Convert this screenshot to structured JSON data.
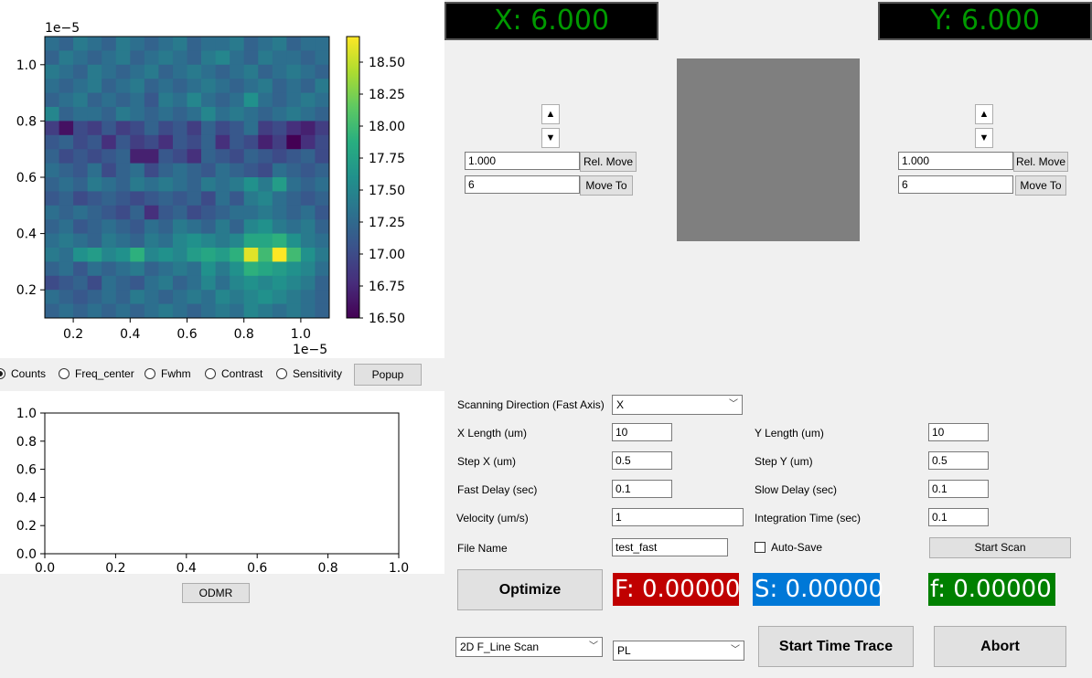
{
  "heatmap": {
    "exponent_top": "1e−5",
    "exponent_bottom": "1e−5",
    "x_ticks": [
      "0.2",
      "0.4",
      "0.6",
      "0.8",
      "1.0"
    ],
    "y_ticks": [
      "0.2",
      "0.4",
      "0.6",
      "0.8",
      "1.0"
    ],
    "colorbar_ticks": [
      "16.50",
      "16.75",
      "17.00",
      "17.25",
      "17.50",
      "17.75",
      "18.00",
      "18.25",
      "18.50"
    ]
  },
  "chart_data": [
    {
      "type": "heatmap",
      "x_range": [
        0.1,
        1.1
      ],
      "y_range": [
        0.1,
        1.1
      ],
      "x_scale_exponent": "1e-5",
      "y_scale_exponent": "1e-5",
      "colormap": "viridis",
      "colorbar_range": [
        16.5,
        18.7
      ],
      "grid_size": [
        20,
        20
      ],
      "values": [
        [
          17.3,
          17.2,
          17.4,
          17.3,
          17.2,
          17.4,
          17.3,
          17.2,
          17.3,
          17.4,
          17.2,
          17.3,
          17.3,
          17.4,
          17.2,
          17.3,
          17.4,
          17.2,
          17.3,
          17.3
        ],
        [
          17.2,
          17.4,
          17.3,
          17.2,
          17.3,
          17.4,
          17.2,
          17.3,
          17.4,
          17.3,
          17.2,
          17.4,
          17.5,
          17.3,
          17.2,
          17.4,
          17.3,
          17.3,
          17.2,
          17.3
        ],
        [
          17.4,
          17.3,
          17.2,
          17.4,
          17.3,
          17.2,
          17.3,
          17.4,
          17.2,
          17.3,
          17.4,
          17.3,
          17.2,
          17.3,
          17.4,
          17.2,
          17.3,
          17.4,
          17.3,
          17.2
        ],
        [
          17.3,
          17.2,
          17.3,
          17.4,
          17.2,
          17.3,
          17.4,
          17.2,
          17.3,
          17.2,
          17.3,
          17.4,
          17.3,
          17.2,
          17.3,
          17.4,
          17.2,
          17.3,
          17.2,
          17.4
        ],
        [
          17.2,
          17.3,
          17.4,
          17.2,
          17.3,
          17.2,
          17.3,
          17.1,
          17.4,
          17.3,
          17.5,
          17.3,
          17.2,
          17.3,
          17.6,
          17.3,
          17.2,
          17.3,
          17.4,
          17.3
        ],
        [
          17.5,
          17.2,
          17.3,
          17.3,
          17.2,
          17.4,
          17.3,
          17.2,
          17.3,
          17.2,
          17.3,
          17.5,
          17.3,
          17.4,
          17.3,
          17.2,
          17.3,
          17.4,
          17.3,
          17.2
        ],
        [
          16.9,
          16.6,
          17.0,
          16.9,
          17.1,
          16.9,
          17.0,
          17.2,
          17.0,
          17.1,
          16.9,
          17.2,
          17.0,
          17.1,
          17.3,
          16.9,
          17.0,
          16.8,
          16.7,
          16.9
        ],
        [
          17.1,
          17.2,
          17.0,
          17.1,
          16.8,
          17.1,
          16.9,
          17.0,
          16.8,
          17.1,
          17.0,
          17.2,
          16.8,
          17.1,
          17.0,
          16.7,
          16.9,
          16.5,
          16.8,
          17.0
        ],
        [
          17.2,
          17.0,
          17.1,
          17.0,
          17.1,
          17.2,
          16.7,
          16.7,
          17.1,
          17.0,
          16.8,
          17.2,
          17.1,
          17.0,
          17.2,
          17.1,
          17.0,
          17.1,
          17.2,
          17.0
        ],
        [
          17.3,
          17.2,
          17.1,
          17.3,
          17.0,
          17.2,
          17.3,
          17.0,
          17.2,
          17.3,
          17.2,
          17.1,
          17.3,
          17.2,
          17.1,
          17.0,
          17.3,
          17.2,
          17.1,
          17.2
        ],
        [
          17.2,
          17.3,
          17.2,
          17.4,
          17.3,
          17.2,
          17.4,
          17.3,
          17.4,
          17.3,
          17.2,
          17.4,
          17.3,
          17.4,
          17.6,
          17.4,
          17.7,
          17.3,
          17.2,
          17.3
        ],
        [
          17.1,
          17.2,
          17.0,
          17.1,
          17.2,
          17.1,
          17.0,
          17.1,
          17.2,
          17.1,
          17.2,
          17.0,
          17.3,
          17.1,
          17.4,
          17.5,
          17.3,
          17.2,
          17.1,
          17.2
        ],
        [
          17.3,
          17.2,
          17.3,
          17.2,
          17.1,
          17.0,
          17.2,
          16.8,
          17.1,
          17.2,
          17.0,
          17.1,
          17.2,
          17.3,
          17.3,
          17.4,
          17.3,
          17.2,
          17.3,
          17.1
        ],
        [
          17.2,
          17.3,
          17.1,
          17.2,
          17.3,
          17.2,
          17.1,
          17.3,
          17.2,
          17.4,
          17.3,
          17.2,
          17.4,
          17.2,
          17.5,
          17.6,
          17.4,
          17.3,
          17.4,
          17.2
        ],
        [
          17.3,
          17.4,
          17.3,
          17.2,
          17.4,
          17.3,
          17.2,
          17.4,
          17.3,
          17.5,
          17.6,
          17.5,
          17.4,
          17.5,
          17.8,
          17.8,
          17.9,
          17.6,
          17.4,
          17.3
        ],
        [
          17.4,
          17.3,
          17.6,
          17.7,
          17.5,
          17.6,
          17.9,
          17.5,
          17.6,
          17.5,
          17.7,
          17.8,
          17.7,
          17.9,
          18.6,
          18.0,
          18.7,
          18.0,
          17.6,
          17.4
        ],
        [
          17.2,
          17.3,
          17.1,
          17.3,
          17.2,
          17.3,
          17.4,
          17.2,
          17.3,
          17.4,
          17.3,
          17.6,
          17.4,
          17.6,
          17.9,
          17.8,
          17.7,
          17.6,
          17.5,
          17.3
        ],
        [
          17.0,
          17.1,
          17.2,
          17.0,
          17.3,
          17.2,
          17.1,
          17.3,
          17.4,
          17.2,
          17.3,
          17.5,
          17.3,
          17.5,
          17.6,
          17.5,
          17.6,
          17.5,
          17.4,
          17.2
        ],
        [
          17.3,
          17.2,
          17.1,
          17.2,
          17.3,
          17.2,
          17.4,
          17.3,
          17.2,
          17.3,
          17.4,
          17.3,
          17.5,
          17.4,
          17.5,
          17.6,
          17.5,
          17.4,
          17.3,
          17.2
        ],
        [
          17.2,
          17.3,
          17.2,
          17.3,
          17.2,
          17.3,
          17.2,
          17.3,
          17.4,
          17.3,
          17.2,
          17.3,
          17.4,
          17.3,
          17.5,
          17.4,
          17.3,
          17.4,
          17.3,
          17.2
        ]
      ]
    },
    {
      "type": "line",
      "xlim": [
        0.0,
        1.0
      ],
      "ylim": [
        0.0,
        1.0
      ],
      "series": [],
      "x_ticks": [
        "0.0",
        "0.2",
        "0.4",
        "0.6",
        "0.8",
        "1.0"
      ],
      "y_ticks": [
        "0.0",
        "0.2",
        "0.4",
        "0.6",
        "0.8",
        "1.0"
      ]
    }
  ],
  "radio_group": {
    "options": [
      "Counts",
      "Freq_center",
      "Fwhm",
      "Contrast",
      "Sensitivity"
    ],
    "selected": "Counts"
  },
  "popup_button": "Popup",
  "odmr_button": "ODMR",
  "xy_display": {
    "x_label": "X: 6.000",
    "y_label": "Y: 6.000",
    "lcd_color": "#009900"
  },
  "x_controls": {
    "up_icon": "triangle-up",
    "down_icon": "triangle-down",
    "step_value": "1.000",
    "target_value": "6",
    "rel_move": "Rel. Move",
    "move_to": "Move To"
  },
  "y_controls": {
    "up_icon": "triangle-up",
    "down_icon": "triangle-down",
    "step_value": "1.000",
    "target_value": "6",
    "rel_move": "Rel. Move",
    "move_to": "Move To"
  },
  "preview_color": "#7f7f7f",
  "scan_params": {
    "direction_label": "Scanning Direction (Fast Axis)",
    "direction_value": "X",
    "x_length_label": "X Length (um)",
    "x_length": "10",
    "y_length_label": "Y Length (um)",
    "y_length": "10",
    "step_x_label": "Step X (um)",
    "step_x": "0.5",
    "step_y_label": "Step Y (um)",
    "step_y": "0.5",
    "fast_delay_label": "Fast Delay (sec)",
    "fast_delay": "0.1",
    "slow_delay_label": "Slow Delay (sec)",
    "slow_delay": "0.1",
    "velocity_label": "Velocity (um/s)",
    "velocity": "1",
    "integration_label": "Integration Time (sec)",
    "integration": "0.1",
    "file_name_label": "File Name",
    "file_name": "test_fast",
    "auto_save_label": "Auto-Save",
    "start_scan": "Start Scan"
  },
  "actions": {
    "optimize": "Optimize",
    "start_time_trace": "Start Time Trace",
    "abort": "Abort",
    "scan_mode": "2D F_Line Scan",
    "signal_mode": "PL"
  },
  "readouts": {
    "f_label": "F: 0.00000",
    "f_color": "#c00000",
    "s_label": "S: 0.00000",
    "s_color": "#0078d7",
    "fsmall_label": "f: 0.00000",
    "fsmall_color": "#008000"
  }
}
